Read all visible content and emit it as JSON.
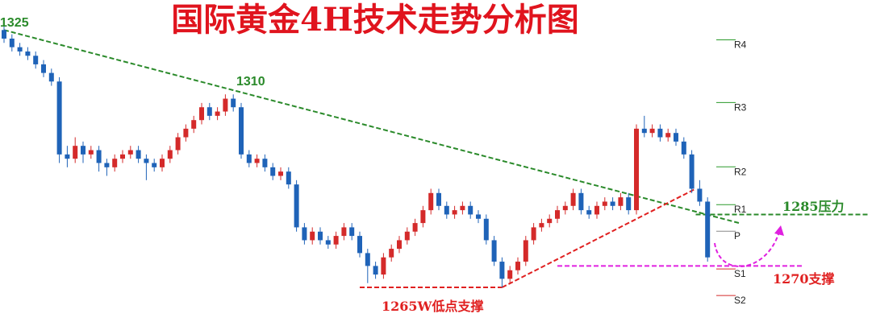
{
  "chart_data": {
    "type": "candlestick",
    "title": "国际黄金4H技术走势分析图",
    "up_color": "#d42a2a",
    "down_color": "#1f63b8",
    "ylim": [
      1256,
      1332
    ],
    "candles": [
      [
        1325,
        1326,
        1322,
        1323
      ],
      [
        1323,
        1324,
        1320,
        1321
      ],
      [
        1321,
        1322,
        1319,
        1320
      ],
      [
        1320,
        1321,
        1318,
        1319
      ],
      [
        1319,
        1320,
        1316,
        1317
      ],
      [
        1317,
        1318,
        1314,
        1315
      ],
      [
        1315,
        1316,
        1312,
        1313
      ],
      [
        1313,
        1314,
        1294,
        1296
      ],
      [
        1296,
        1298,
        1293,
        1295
      ],
      [
        1295,
        1300,
        1294,
        1298
      ],
      [
        1298,
        1299,
        1294,
        1296
      ],
      [
        1296,
        1298,
        1295,
        1297
      ],
      [
        1297,
        1298,
        1292,
        1294
      ],
      [
        1294,
        1295,
        1291,
        1293
      ],
      [
        1293,
        1296,
        1292,
        1295
      ],
      [
        1295,
        1297,
        1294,
        1296
      ],
      [
        1296,
        1298,
        1295,
        1297
      ],
      [
        1297,
        1298,
        1294,
        1295
      ],
      [
        1295,
        1296,
        1290,
        1294
      ],
      [
        1294,
        1295,
        1292,
        1293
      ],
      [
        1293,
        1296,
        1292,
        1295
      ],
      [
        1295,
        1298,
        1294,
        1297
      ],
      [
        1297,
        1301,
        1296,
        1300
      ],
      [
        1300,
        1303,
        1299,
        1302
      ],
      [
        1302,
        1305,
        1301,
        1304
      ],
      [
        1304,
        1308,
        1303,
        1307
      ],
      [
        1307,
        1308,
        1304,
        1305
      ],
      [
        1305,
        1307,
        1304,
        1306
      ],
      [
        1306,
        1310,
        1305,
        1309
      ],
      [
        1309,
        1310,
        1306,
        1307
      ],
      [
        1307,
        1308,
        1295,
        1296
      ],
      [
        1296,
        1297,
        1293,
        1294
      ],
      [
        1294,
        1296,
        1293,
        1295
      ],
      [
        1295,
        1296,
        1292,
        1293
      ],
      [
        1293,
        1294,
        1290,
        1291
      ],
      [
        1291,
        1293,
        1290,
        1292
      ],
      [
        1292,
        1293,
        1288,
        1289
      ],
      [
        1289,
        1290,
        1278,
        1279
      ],
      [
        1279,
        1280,
        1275,
        1276
      ],
      [
        1276,
        1279,
        1275,
        1278
      ],
      [
        1278,
        1279,
        1275,
        1276
      ],
      [
        1276,
        1277,
        1274,
        1275
      ],
      [
        1275,
        1278,
        1274,
        1277
      ],
      [
        1277,
        1280,
        1276,
        1279
      ],
      [
        1279,
        1280,
        1276,
        1277
      ],
      [
        1277,
        1278,
        1272,
        1273
      ],
      [
        1273,
        1274,
        1266,
        1270
      ],
      [
        1270,
        1271,
        1267,
        1268
      ],
      [
        1268,
        1273,
        1267,
        1272
      ],
      [
        1272,
        1275,
        1271,
        1274
      ],
      [
        1274,
        1277,
        1273,
        1276
      ],
      [
        1276,
        1279,
        1275,
        1278
      ],
      [
        1278,
        1281,
        1277,
        1280
      ],
      [
        1280,
        1284,
        1279,
        1283
      ],
      [
        1283,
        1288,
        1282,
        1287
      ],
      [
        1287,
        1288,
        1283,
        1284
      ],
      [
        1284,
        1285,
        1281,
        1282
      ],
      [
        1282,
        1284,
        1281,
        1283
      ],
      [
        1283,
        1285,
        1282,
        1284
      ],
      [
        1284,
        1285,
        1281,
        1282
      ],
      [
        1282,
        1283,
        1280,
        1281
      ],
      [
        1281,
        1282,
        1275,
        1276
      ],
      [
        1276,
        1277,
        1270,
        1271
      ],
      [
        1271,
        1272,
        1265,
        1267
      ],
      [
        1267,
        1270,
        1266,
        1269
      ],
      [
        1269,
        1272,
        1268,
        1271
      ],
      [
        1271,
        1277,
        1270,
        1276
      ],
      [
        1276,
        1280,
        1275,
        1279
      ],
      [
        1279,
        1281,
        1278,
        1280
      ],
      [
        1280,
        1282,
        1279,
        1281
      ],
      [
        1281,
        1284,
        1280,
        1283
      ],
      [
        1283,
        1285,
        1282,
        1284
      ],
      [
        1284,
        1288,
        1283,
        1287
      ],
      [
        1287,
        1288,
        1282,
        1283
      ],
      [
        1283,
        1284,
        1281,
        1282
      ],
      [
        1282,
        1285,
        1281,
        1284
      ],
      [
        1284,
        1286,
        1283,
        1285
      ],
      [
        1285,
        1286,
        1283,
        1284
      ],
      [
        1284,
        1287,
        1283,
        1286
      ],
      [
        1286,
        1287,
        1282,
        1283
      ],
      [
        1283,
        1303,
        1282,
        1302
      ],
      [
        1302,
        1305,
        1300,
        1301
      ],
      [
        1301,
        1303,
        1300,
        1302
      ],
      [
        1302,
        1303,
        1299,
        1300
      ],
      [
        1300,
        1302,
        1299,
        1301
      ],
      [
        1301,
        1302,
        1298,
        1299
      ],
      [
        1299,
        1300,
        1295,
        1296
      ],
      [
        1296,
        1297,
        1287,
        1288
      ],
      [
        1288,
        1290,
        1284,
        1285
      ],
      [
        1285,
        1286,
        1271,
        1272
      ]
    ],
    "lines": [
      {
        "x": [
          0,
          93
        ],
        "values": [
          1325,
          1280
        ],
        "color": "#2a8a2a"
      },
      {
        "x": [
          63,
          87.5
        ],
        "values": [
          1265,
          1288
        ],
        "color": "#e02020"
      },
      {
        "x": [
          45,
          63
        ],
        "values": [
          1265,
          1265
        ],
        "color": "#e02020"
      },
      {
        "x": [
          87.5,
          109.5
        ],
        "values": [
          1282,
          1282
        ],
        "color": "#2a8a2a"
      },
      {
        "x": [
          70,
          101
        ],
        "values": [
          1270,
          1270
        ],
        "color": "#e020e0"
      }
    ],
    "pivots": {
      "labels": [
        "R4",
        "R3",
        "R2",
        "R1",
        "P",
        "S1",
        "S2"
      ],
      "values": [
        1322.7,
        1308.1,
        1293.1,
        1284.3,
        1278.1,
        1269.3,
        1263.1
      ],
      "colors": [
        "#2a9a2a",
        "#2a9a2a",
        "#2a9a2a",
        "#2a9a2a",
        "#888888",
        "#d42a2a",
        "#d42a2a"
      ]
    },
    "annotations": [
      "1325",
      "1310",
      "1285压力",
      "1270支撑",
      "1265W低点支撑"
    ]
  }
}
